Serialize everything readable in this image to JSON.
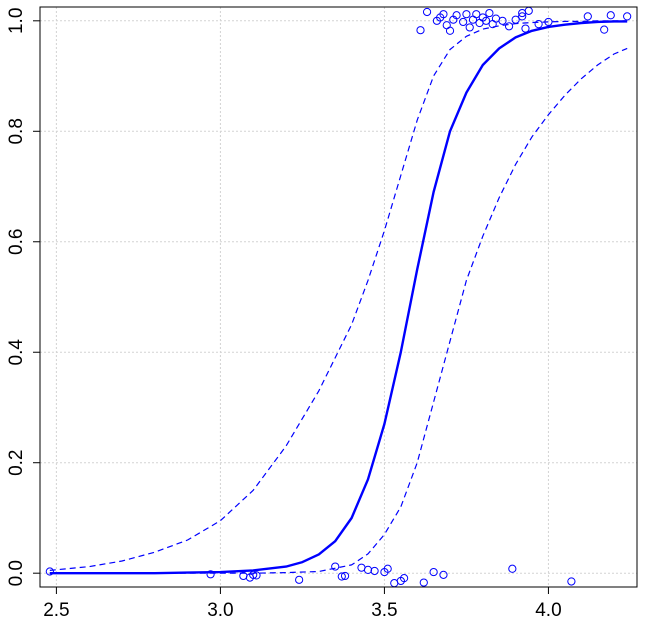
{
  "chart_data": {
    "type": "scatter",
    "title": "",
    "xlabel": "",
    "ylabel": "",
    "xlim": [
      2.45,
      4.27
    ],
    "ylim": [
      -0.025,
      1.025
    ],
    "x_ticks": [
      "2.5",
      "3.0",
      "3.5",
      "4.0"
    ],
    "y_ticks": [
      "0.0",
      "0.2",
      "0.4",
      "0.6",
      "0.8",
      "1.0"
    ],
    "grid": true,
    "legend": "none",
    "colors": {
      "series": "#0000ff",
      "grid": "#d3d3d3",
      "axis": "#000000"
    },
    "series": [
      {
        "style": "points",
        "marker": "open-circle",
        "x": [
          2.48,
          2.97,
          3.07,
          3.09,
          3.1,
          3.11,
          3.24,
          3.35,
          3.37,
          3.38,
          3.43,
          3.45,
          3.47,
          3.5,
          3.51,
          3.53,
          3.55,
          3.56,
          3.62,
          3.65,
          3.68,
          3.89,
          4.07,
          3.61,
          3.63,
          3.66,
          3.67,
          3.68,
          3.69,
          3.7,
          3.71,
          3.72,
          3.74,
          3.75,
          3.76,
          3.77,
          3.78,
          3.79,
          3.8,
          3.81,
          3.82,
          3.83,
          3.84,
          3.86,
          3.88,
          3.9,
          3.92,
          3.92,
          3.93,
          3.94,
          3.97,
          4.0,
          4.12,
          4.17,
          4.19,
          4.24
        ],
        "y": [
          0.003,
          -0.002,
          -0.005,
          -0.008,
          -0.003,
          -0.004,
          -0.012,
          0.012,
          -0.006,
          -0.005,
          0.01,
          0.006,
          0.004,
          0.002,
          0.008,
          -0.018,
          -0.014,
          -0.009,
          -0.017,
          0.002,
          -0.003,
          0.008,
          -0.015,
          0.983,
          1.016,
          1.0,
          1.006,
          1.012,
          0.992,
          0.982,
          1.002,
          1.01,
          0.998,
          1.012,
          0.988,
          1.002,
          1.012,
          0.996,
          1.006,
          1.0,
          1.014,
          0.994,
          1.004,
          1.0,
          0.99,
          1.002,
          1.014,
          1.008,
          0.986,
          1.018,
          0.994,
          0.998,
          1.008,
          0.984,
          1.01,
          1.008
        ]
      },
      {
        "style": "solid",
        "x": [
          2.48,
          2.6,
          2.7,
          2.8,
          2.9,
          3.0,
          3.1,
          3.2,
          3.25,
          3.3,
          3.35,
          3.4,
          3.45,
          3.5,
          3.55,
          3.6,
          3.65,
          3.7,
          3.75,
          3.8,
          3.85,
          3.9,
          3.95,
          4.0,
          4.05,
          4.1,
          4.15,
          4.2,
          4.24
        ],
        "y": [
          0.0,
          0.0,
          0.0,
          0.0,
          0.001,
          0.002,
          0.005,
          0.012,
          0.02,
          0.034,
          0.058,
          0.1,
          0.17,
          0.27,
          0.4,
          0.55,
          0.69,
          0.8,
          0.87,
          0.92,
          0.95,
          0.97,
          0.982,
          0.989,
          0.993,
          0.996,
          0.998,
          0.999,
          0.999
        ]
      },
      {
        "style": "dashed",
        "x": [
          2.48,
          2.6,
          2.7,
          2.8,
          2.9,
          3.0,
          3.1,
          3.2,
          3.3,
          3.4,
          3.45,
          3.5,
          3.55,
          3.6,
          3.65,
          3.7,
          3.75,
          3.8,
          3.85,
          3.9,
          3.95,
          4.0,
          4.05,
          4.1,
          4.15,
          4.2,
          4.24
        ],
        "y": [
          0.005,
          0.012,
          0.022,
          0.038,
          0.06,
          0.095,
          0.15,
          0.23,
          0.33,
          0.45,
          0.53,
          0.62,
          0.72,
          0.82,
          0.9,
          0.948,
          0.972,
          0.985,
          0.991,
          0.995,
          0.997,
          0.998,
          0.999,
          0.999,
          1.0,
          1.0,
          1.0
        ]
      },
      {
        "style": "dashed",
        "x": [
          2.48,
          2.7,
          2.9,
          3.0,
          3.1,
          3.2,
          3.3,
          3.4,
          3.45,
          3.5,
          3.55,
          3.6,
          3.65,
          3.7,
          3.75,
          3.8,
          3.85,
          3.9,
          3.95,
          4.0,
          4.05,
          4.1,
          4.15,
          4.2,
          4.24
        ],
        "y": [
          0.0,
          0.0,
          0.0,
          0.0,
          0.0,
          0.001,
          0.003,
          0.015,
          0.035,
          0.07,
          0.12,
          0.2,
          0.31,
          0.42,
          0.53,
          0.61,
          0.68,
          0.74,
          0.79,
          0.83,
          0.865,
          0.895,
          0.92,
          0.94,
          0.95
        ]
      }
    ]
  }
}
